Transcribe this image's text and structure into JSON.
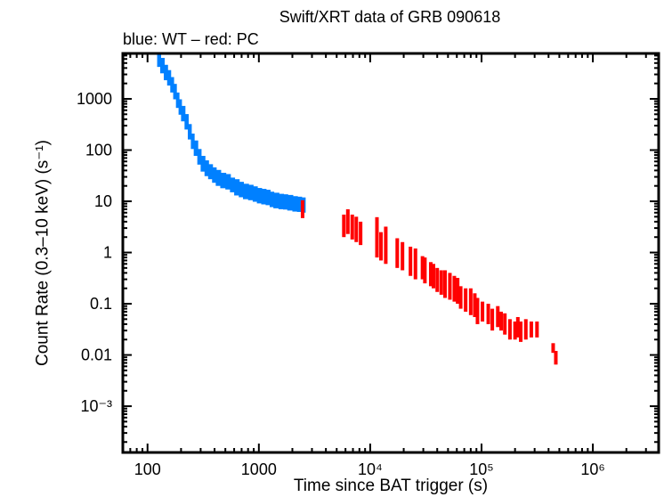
{
  "chart_data": {
    "type": "scatter",
    "title": "Swift/XRT data of GRB 090618",
    "subtitle": "blue: WT – red: PC",
    "xlabel": "Time since BAT trigger (s)",
    "ylabel": "Count Rate (0.3–10 keV) (s⁻¹)",
    "xscale": "log",
    "yscale": "log",
    "xlim": [
      60,
      3900000
    ],
    "ylim": [
      0.000125,
      7700
    ],
    "grid": false,
    "x_ticks": [
      {
        "value": 100,
        "label": "100"
      },
      {
        "value": 1000,
        "label": "1000"
      },
      {
        "value": 10000,
        "label": "10⁴"
      },
      {
        "value": 100000,
        "label": "10⁵"
      },
      {
        "value": 1000000,
        "label": "10⁶"
      }
    ],
    "y_ticks": [
      {
        "value": 1000,
        "label": "1000"
      },
      {
        "value": 100,
        "label": "100"
      },
      {
        "value": 10,
        "label": "10"
      },
      {
        "value": 1,
        "label": "1"
      },
      {
        "value": 0.1,
        "label": "0.1"
      },
      {
        "value": 0.01,
        "label": "0.01"
      },
      {
        "value": 0.001,
        "label": "10⁻³"
      }
    ],
    "series": [
      {
        "mode": "WT",
        "color": "#0080ff",
        "point_format": [
          "time_s",
          "rate",
          "rate_low",
          "rate_high"
        ],
        "points": [
          [
            122,
            6000,
            4200,
            7400
          ],
          [
            130,
            4500,
            3150,
            6300
          ],
          [
            140,
            3300,
            2310,
            4620
          ],
          [
            150,
            2600,
            1820,
            3640
          ],
          [
            160,
            1900,
            1330,
            2660
          ],
          [
            170,
            1400,
            980,
            1960
          ],
          [
            180,
            950,
            665,
            1330
          ],
          [
            190,
            700,
            490,
            980
          ],
          [
            200,
            520,
            364,
            728
          ],
          [
            215,
            360,
            252,
            504
          ],
          [
            230,
            230,
            161,
            322
          ],
          [
            245,
            150,
            105,
            210
          ],
          [
            260,
            110,
            77,
            154
          ],
          [
            280,
            75,
            52,
            105
          ],
          [
            300,
            55,
            38,
            77
          ],
          [
            325,
            45,
            31,
            63
          ],
          [
            350,
            38,
            27,
            53
          ],
          [
            380,
            33,
            23,
            46
          ],
          [
            410,
            29,
            20,
            41
          ],
          [
            450,
            26,
            18,
            36
          ],
          [
            500,
            24,
            17,
            34
          ],
          [
            550,
            21,
            15,
            29
          ],
          [
            600,
            19,
            13,
            27
          ],
          [
            660,
            17,
            12,
            24
          ],
          [
            720,
            16,
            11,
            22
          ],
          [
            800,
            15,
            10.5,
            21
          ],
          [
            880,
            14,
            9.8,
            19.6
          ],
          [
            960,
            13,
            9.1,
            18.2
          ],
          [
            1050,
            12.5,
            8.7,
            17.5
          ],
          [
            1150,
            12,
            8.4,
            16.8
          ],
          [
            1250,
            11,
            7.7,
            15.4
          ],
          [
            1350,
            10.5,
            7.3,
            14.7
          ],
          [
            1500,
            10,
            7,
            14
          ],
          [
            1650,
            9.8,
            6.9,
            13.7
          ],
          [
            1800,
            9.5,
            6.6,
            13.3
          ],
          [
            2000,
            9,
            6.3,
            12.6
          ],
          [
            2200,
            8.8,
            6.2,
            12.3
          ],
          [
            2400,
            8.5,
            6,
            11.9
          ]
        ]
      },
      {
        "mode": "PC",
        "color": "#ff0000",
        "point_format": [
          "time_s",
          "rate",
          "rate_low",
          "rate_high"
        ],
        "points": [
          [
            2470,
            7.5,
            4.7,
            10.5
          ],
          [
            5800,
            3.5,
            2.0,
            5.5
          ],
          [
            6300,
            4.0,
            2.3,
            7.0
          ],
          [
            6900,
            3.3,
            1.8,
            5.5
          ],
          [
            7500,
            3.0,
            1.6,
            5.0
          ],
          [
            8200,
            2.6,
            1.4,
            4.0
          ],
          [
            11500,
            1.8,
            0.8,
            4.9
          ],
          [
            12500,
            1.4,
            0.7,
            2.5
          ],
          [
            13800,
            1.2,
            0.6,
            3.2
          ],
          [
            17500,
            0.95,
            0.5,
            1.9
          ],
          [
            19500,
            0.85,
            0.45,
            1.6
          ],
          [
            23000,
            0.65,
            0.35,
            1.3
          ],
          [
            25500,
            0.6,
            0.3,
            1.2
          ],
          [
            29500,
            0.5,
            0.3,
            0.85
          ],
          [
            31000,
            0.45,
            0.25,
            0.8
          ],
          [
            35000,
            0.38,
            0.22,
            0.65
          ],
          [
            37000,
            0.35,
            0.2,
            0.6
          ],
          [
            40000,
            0.3,
            0.17,
            0.5
          ],
          [
            43500,
            0.27,
            0.15,
            0.45
          ],
          [
            47000,
            0.25,
            0.13,
            0.45
          ],
          [
            52000,
            0.22,
            0.12,
            0.4
          ],
          [
            57000,
            0.2,
            0.11,
            0.35
          ],
          [
            61000,
            0.18,
            0.1,
            0.32
          ],
          [
            65000,
            0.14,
            0.08,
            0.22
          ],
          [
            72000,
            0.13,
            0.07,
            0.2
          ],
          [
            80000,
            0.11,
            0.06,
            0.2
          ],
          [
            87000,
            0.1,
            0.055,
            0.16
          ],
          [
            92000,
            0.08,
            0.04,
            0.13
          ],
          [
            102000,
            0.07,
            0.045,
            0.11
          ],
          [
            115000,
            0.06,
            0.04,
            0.1
          ],
          [
            125000,
            0.05,
            0.03,
            0.08
          ],
          [
            140000,
            0.055,
            0.035,
            0.09
          ],
          [
            150000,
            0.045,
            0.03,
            0.07
          ],
          [
            162000,
            0.04,
            0.025,
            0.065
          ],
          [
            180000,
            0.032,
            0.02,
            0.05
          ],
          [
            200000,
            0.03,
            0.02,
            0.045
          ],
          [
            212000,
            0.035,
            0.022,
            0.055
          ],
          [
            225000,
            0.028,
            0.018,
            0.045
          ],
          [
            250000,
            0.03,
            0.02,
            0.05
          ],
          [
            280000,
            0.032,
            0.022,
            0.045
          ],
          [
            315000,
            0.032,
            0.022,
            0.045
          ],
          [
            440000,
            0.014,
            0.011,
            0.017
          ],
          [
            465000,
            0.009,
            0.0065,
            0.012
          ]
        ]
      }
    ]
  }
}
